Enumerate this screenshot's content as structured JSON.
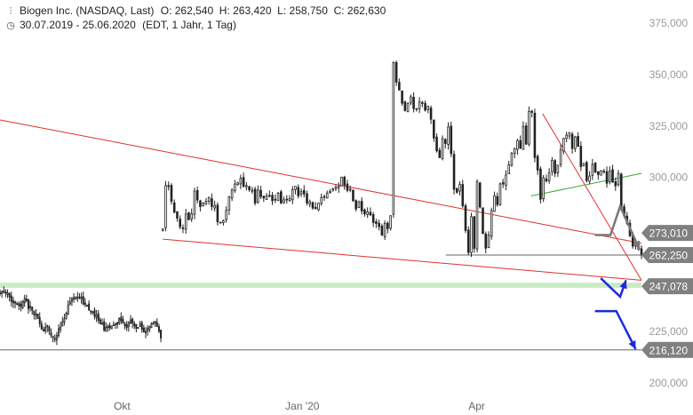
{
  "header": {
    "title": "Biogen Inc. (NASDAQ, Last)",
    "ohlc": "O: 262,540  H: 263,420  L: 258,750  C: 262,630",
    "range": "30.07.2019 - 25.06.2020",
    "settings": "(EDT, 1 Jahr, 1 Tag)",
    "chart_icon": "candlestick-icon",
    "clock_icon": "clock-icon"
  },
  "colors": {
    "candle": "#222222",
    "trend_red": "#e03030",
    "trend_green": "#3aa53a",
    "support_band": "#c9ecc4",
    "arrow_blue": "#1a2ae0",
    "arrow_gray": "#777777",
    "label_bg": "#808080",
    "grid_text": "#999999"
  },
  "chart_data": {
    "type": "candlestick",
    "ylim": [
      197000,
      382000
    ],
    "x_range": [
      "2019-07-30",
      "2020-06-25"
    ],
    "y_ticks": [
      "375,000",
      "350,000",
      "325,000",
      "300,000",
      "225,000",
      "200,000"
    ],
    "y_tick_values": [
      375000,
      350000,
      325000,
      300000,
      225000,
      200000
    ],
    "x_ticks": [
      {
        "label": "Okt",
        "date": "2019-10-01"
      },
      {
        "label": "Jan '20",
        "date": "2020-01-02"
      },
      {
        "label": "Apr",
        "date": "2020-04-01"
      }
    ],
    "price_labels": [
      {
        "text": "273,010",
        "value": 273010
      },
      {
        "text": "262,250",
        "value": 262250
      },
      {
        "text": "247,078",
        "value": 247078
      },
      {
        "text": "216,120",
        "value": 216120
      }
    ],
    "support_band": [
      246300,
      248800
    ],
    "trendlines": [
      {
        "color": "red",
        "points": [
          [
            "2019-07-30",
            328000
          ],
          [
            "2020-06-25",
            268000
          ]
        ]
      },
      {
        "color": "red",
        "points": [
          [
            "2019-10-22",
            270000
          ],
          [
            "2020-06-25",
            250000
          ]
        ]
      },
      {
        "color": "red",
        "points": [
          [
            "2020-05-05",
            331000
          ],
          [
            "2020-06-25",
            250000
          ]
        ]
      },
      {
        "color": "green",
        "points": [
          [
            "2020-04-29",
            291000
          ],
          [
            "2020-06-25",
            302000
          ]
        ]
      }
    ],
    "horizontal_lines": [
      {
        "value": 262250,
        "from": "2020-03-16"
      },
      {
        "value": 216120,
        "from": "2019-07-30"
      }
    ],
    "projections": [
      {
        "color": "blue",
        "points": [
          [
            "2020-06-04",
            251000
          ],
          [
            "2020-06-14",
            242000
          ],
          [
            "2020-06-17",
            250000
          ]
        ]
      },
      {
        "color": "blue",
        "points": [
          [
            "2020-06-01",
            235000
          ],
          [
            "2020-06-12",
            235000
          ],
          [
            "2020-06-22",
            216500
          ]
        ]
      },
      {
        "color": "gray",
        "points": [
          [
            "2020-06-01",
            272000
          ],
          [
            "2020-06-09",
            272000
          ],
          [
            "2020-06-14",
            286000
          ],
          [
            "2020-06-24",
            265000
          ]
        ]
      }
    ],
    "series": [
      {
        "period": "2019-07-30 to 2019-10-21",
        "closes": [
          244200,
          244500,
          245000,
          243700,
          243800,
          241900,
          239700,
          239000,
          238900,
          238700,
          237700,
          237300,
          239800,
          241100,
          240100,
          236200,
          237400,
          235400,
          233300,
          233400,
          231500,
          228900,
          226300,
          225400,
          227000,
          227900,
          225200,
          223200,
          222100,
          221500,
          223100,
          226400,
          227300,
          229700,
          231200,
          234000,
          238000,
          239500,
          241100,
          241700,
          241300,
          241800,
          241400,
          241800,
          238500,
          238100,
          237800,
          235400,
          235000,
          234700,
          232500,
          233000,
          230500,
          228900,
          229100,
          225800,
          227200,
          227500,
          226900,
          227800,
          228300,
          228800,
          228500,
          231300,
          230200,
          229100,
          227900,
          226900,
          229500,
          230700,
          229200,
          227800,
          226600,
          227100,
          228700,
          226100,
          224900,
          225100,
          226500,
          227500,
          228800,
          229200,
          229200,
          227600,
          225200,
          221900
        ]
      },
      {
        "period": "2019-10-22 to 2020-06-25",
        "closes": [
          275000,
          296100,
          296000,
          288400,
          283100,
          280200,
          276000,
          275100,
          282200,
          279500,
          282300,
          293400,
          289000,
          285800,
          287600,
          288400,
          290300,
          285900,
          286400,
          278400,
          277900,
          279000,
          284000,
          290600,
          293900,
          296800,
          297400,
          299600,
          295500,
          296100,
          294000,
          293800,
          287500,
          293900,
          290700,
          290000,
          291000,
          291100,
          288700,
          289400,
          292300,
          287600,
          289100,
          289200,
          289700,
          294000,
          295700,
          291100,
          293100,
          292000,
          287600,
          288200,
          285100,
          284800,
          287500,
          290300,
          290500,
          292400,
          293200,
          294400,
          295400,
          295700,
          300200,
          296300,
          293700,
          294300,
          288700,
          284700,
          288200,
          283700,
          282300,
          283300,
          281800,
          278100,
          277600,
          276100,
          271900,
          277700,
          275100,
          281400,
          355800,
          346400,
          342500,
          336100,
          332600,
          335900,
          339200,
          333500,
          333500,
          336800,
          336100,
          332700,
          334500,
          328300,
          319200,
          312900,
          309700,
          318900,
          316500,
          324600,
          311600,
          294200,
          292800,
          296600,
          286200,
          274200,
          263500,
          280900,
          265500,
          297900,
          285600,
          272700,
          265600,
          272000,
          283900,
          291100,
          286800,
          296900,
          296800,
          301200,
          306200,
          311700,
          314100,
          318000,
          314300,
          324800,
          316200,
          332100,
          331700,
          309700,
          303600,
          289400,
          299900,
          298300,
          302400,
          308300,
          302000,
          306000,
          313600,
          319000,
          320600,
          321800,
          314100,
          319700,
          315100,
          305300,
          306900,
          298500,
          300700,
          306400,
          302500,
          301400,
          303300,
          303100,
          297200,
          303100,
          297700,
          295900,
          302000,
          285200,
          281400,
          277700,
          271600,
          266600,
          267100,
          265100,
          262600
        ]
      }
    ]
  }
}
